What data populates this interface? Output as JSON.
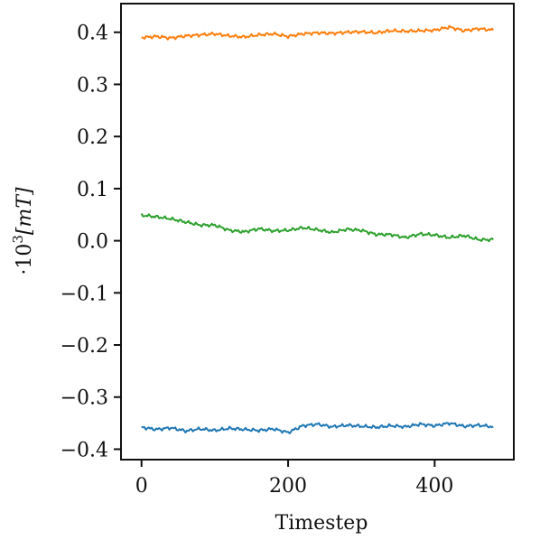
{
  "chart_data": {
    "type": "line",
    "xlabel": "Timestep",
    "ylabel_prefix": "·10",
    "ylabel_exponent": "3",
    "ylabel_unit": "[mT]",
    "xlim": [
      -28,
      508
    ],
    "ylim": [
      -0.42,
      0.455
    ],
    "xticks": [
      0,
      200,
      400
    ],
    "xtick_labels": [
      "0",
      "200",
      "400"
    ],
    "yticks": [
      0.4,
      0.3,
      0.2,
      0.1,
      0.0,
      -0.1,
      -0.2,
      -0.3,
      -0.4
    ],
    "ytick_labels": [
      "0.4",
      "0.3",
      "0.2",
      "0.1",
      "0.0",
      "−0.1",
      "−0.2",
      "−0.3",
      "−0.4"
    ],
    "grid": false,
    "series": [
      {
        "color": "#ff7f0e",
        "x": [
          0,
          20,
          40,
          60,
          80,
          100,
          120,
          140,
          160,
          180,
          200,
          220,
          240,
          260,
          280,
          300,
          320,
          340,
          360,
          380,
          400,
          420,
          440,
          460,
          480
        ],
        "values": [
          0.39,
          0.392,
          0.389,
          0.393,
          0.395,
          0.397,
          0.393,
          0.391,
          0.395,
          0.397,
          0.392,
          0.397,
          0.399,
          0.398,
          0.4,
          0.401,
          0.399,
          0.403,
          0.402,
          0.403,
          0.404,
          0.41,
          0.403,
          0.407,
          0.404
        ]
      },
      {
        "color": "#2ca02c",
        "x": [
          0,
          20,
          40,
          60,
          80,
          100,
          120,
          140,
          160,
          180,
          200,
          220,
          240,
          260,
          280,
          300,
          320,
          340,
          360,
          380,
          400,
          420,
          440,
          460,
          480
        ],
        "values": [
          0.049,
          0.046,
          0.042,
          0.036,
          0.03,
          0.03,
          0.02,
          0.017,
          0.023,
          0.019,
          0.02,
          0.025,
          0.021,
          0.016,
          0.022,
          0.02,
          0.012,
          0.012,
          0.006,
          0.013,
          0.011,
          0.006,
          0.01,
          0.002,
          0.002
        ]
      },
      {
        "color": "#1f77b4",
        "x": [
          0,
          20,
          40,
          60,
          80,
          100,
          120,
          140,
          160,
          180,
          200,
          220,
          240,
          260,
          280,
          300,
          320,
          340,
          360,
          380,
          400,
          420,
          440,
          460,
          480
        ],
        "values": [
          -0.358,
          -0.362,
          -0.359,
          -0.365,
          -0.361,
          -0.364,
          -0.36,
          -0.362,
          -0.364,
          -0.361,
          -0.368,
          -0.355,
          -0.352,
          -0.357,
          -0.354,
          -0.356,
          -0.358,
          -0.355,
          -0.357,
          -0.352,
          -0.355,
          -0.35,
          -0.356,
          -0.354,
          -0.357
        ]
      }
    ]
  }
}
